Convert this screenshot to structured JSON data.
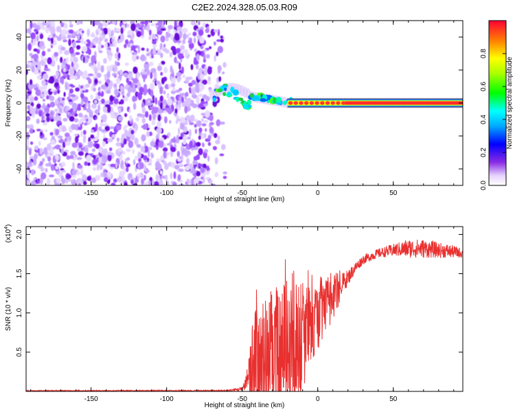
{
  "figure_title": "C2E2.2024.328.05.03.R09",
  "chart_data": [
    {
      "type": "heatmap",
      "title": "C2E2.2024.328.05.03.R09",
      "xlabel": "Height of straight line (km)",
      "ylabel": "Frequency (Hz)",
      "xlim": [
        -193,
        96
      ],
      "ylim": [
        -50,
        50
      ],
      "xticks": [
        -150,
        -100,
        -50,
        0,
        50
      ],
      "yticks": [
        -40,
        -20,
        0,
        20,
        40
      ],
      "colorbar": {
        "label": "Normalized spectral amplitude",
        "range": [
          0,
          1
        ],
        "ticks": [
          0.0,
          0.2,
          0.4,
          0.6,
          0.8
        ],
        "colormap": "rainbow"
      },
      "regions": [
        {
          "name": "noise",
          "x_range": [
            -193,
            -60
          ],
          "y_range": [
            -50,
            50
          ],
          "amplitude": "low (0.1-0.3)"
        },
        {
          "name": "transition",
          "x_range": [
            -70,
            -20
          ],
          "center_freq_hz": [
            2,
            9
          ],
          "amplitude": "0.3-0.7"
        },
        {
          "name": "signal",
          "x_range": [
            -20,
            96
          ],
          "center_freq_hz": 0,
          "amplitude": "0.8-1.0"
        }
      ]
    },
    {
      "type": "line",
      "title": "",
      "xlabel": "Height of straight line (km)",
      "ylabel": "SNR (10 * v/v)",
      "scale_label": "(x10",
      "scale_exp": "4",
      "scale_close": ")",
      "xlim": [
        -193,
        96
      ],
      "ylim": [
        0,
        2.1
      ],
      "xticks": [
        -150,
        -100,
        -50,
        0,
        50
      ],
      "yticks": [
        0.5,
        1.0,
        1.5,
        2.0
      ],
      "series": [
        {
          "name": "SNR",
          "color": "#e8302f",
          "envelope_x": [
            -193,
            -60,
            -50,
            -48,
            -45,
            -40,
            -35,
            -30,
            -25,
            -20,
            -15,
            -10,
            -5,
            0,
            5,
            10,
            15,
            20,
            25,
            30,
            40,
            50,
            60,
            70,
            80,
            90,
            96
          ],
          "envelope_mean": [
            0.01,
            0.01,
            0.03,
            0.1,
            0.25,
            0.35,
            0.45,
            0.55,
            0.5,
            0.6,
            0.6,
            0.7,
            0.85,
            0.95,
            1.05,
            1.2,
            1.35,
            1.45,
            1.58,
            1.68,
            1.76,
            1.8,
            1.82,
            1.82,
            1.8,
            1.78,
            1.76
          ],
          "envelope_spread": [
            0.005,
            0.008,
            0.03,
            0.1,
            0.35,
            0.55,
            0.5,
            0.55,
            0.6,
            0.6,
            0.7,
            0.5,
            0.35,
            0.3,
            0.25,
            0.2,
            0.15,
            0.1,
            0.07,
            0.06,
            0.06,
            0.08,
            0.12,
            0.12,
            0.1,
            0.08,
            0.06
          ]
        }
      ]
    }
  ]
}
